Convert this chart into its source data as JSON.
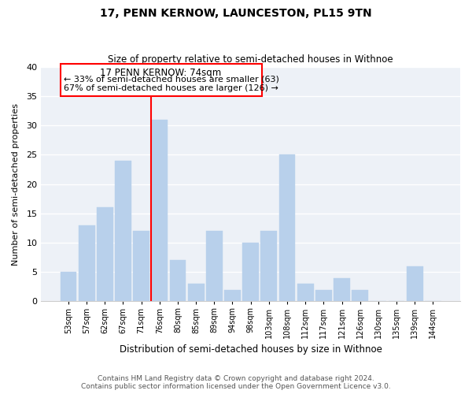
{
  "title": "17, PENN KERNOW, LAUNCESTON, PL15 9TN",
  "subtitle": "Size of property relative to semi-detached houses in Withnoe",
  "xlabel": "Distribution of semi-detached houses by size in Withnoe",
  "ylabel": "Number of semi-detached properties",
  "bar_labels": [
    "53sqm",
    "57sqm",
    "62sqm",
    "67sqm",
    "71sqm",
    "76sqm",
    "80sqm",
    "85sqm",
    "89sqm",
    "94sqm",
    "98sqm",
    "103sqm",
    "108sqm",
    "112sqm",
    "117sqm",
    "121sqm",
    "126sqm",
    "130sqm",
    "135sqm",
    "139sqm",
    "144sqm"
  ],
  "bar_values": [
    5,
    13,
    16,
    24,
    12,
    31,
    7,
    3,
    12,
    2,
    10,
    12,
    25,
    3,
    2,
    4,
    2,
    0,
    0,
    6,
    0
  ],
  "bar_color": "#b8d0eb",
  "annotation_title": "17 PENN KERNOW: 74sqm",
  "annotation_line1": "← 33% of semi-detached houses are smaller (63)",
  "annotation_line2": "67% of semi-detached houses are larger (126) →",
  "ylim": [
    0,
    40
  ],
  "yticks": [
    0,
    5,
    10,
    15,
    20,
    25,
    30,
    35,
    40
  ],
  "footer1": "Contains HM Land Registry data © Crown copyright and database right 2024.",
  "footer2": "Contains public sector information licensed under the Open Government Licence v3.0.",
  "background_color": "#edf1f7",
  "grid_color": "#ffffff",
  "fig_bg": "#ffffff"
}
